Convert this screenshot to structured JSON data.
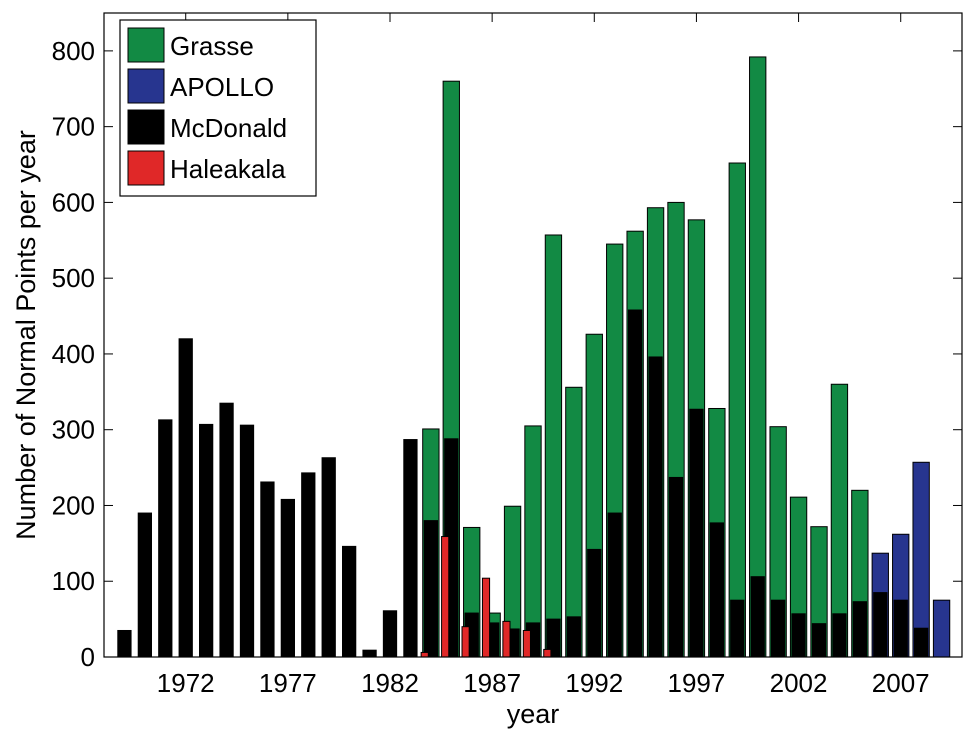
{
  "chart_data": {
    "type": "bar",
    "title": "",
    "xlabel": "year",
    "ylabel": "Number of Normal Points per year",
    "xlim": [
      1968,
      2010
    ],
    "ylim": [
      0,
      850
    ],
    "x_ticks": [
      1972,
      1977,
      1982,
      1987,
      1992,
      1997,
      2002,
      2007
    ],
    "y_ticks": [
      0,
      100,
      200,
      300,
      400,
      500,
      600,
      700,
      800
    ],
    "grid": false,
    "legend_position": "top-left",
    "series": [
      {
        "name": "Grasse",
        "color": "#128a44",
        "bar_width": 0.8,
        "offset": 0,
        "points": [
          [
            1984,
            301
          ],
          [
            1985,
            760
          ],
          [
            1986,
            171
          ],
          [
            1987,
            58
          ],
          [
            1988,
            199
          ],
          [
            1989,
            305
          ],
          [
            1990,
            557
          ],
          [
            1991,
            356
          ],
          [
            1992,
            426
          ],
          [
            1993,
            545
          ],
          [
            1994,
            562
          ],
          [
            1995,
            593
          ],
          [
            1996,
            600
          ],
          [
            1997,
            577
          ],
          [
            1998,
            328
          ],
          [
            1999,
            652
          ],
          [
            2000,
            792
          ],
          [
            2001,
            304
          ],
          [
            2002,
            211
          ],
          [
            2003,
            172
          ],
          [
            2004,
            360
          ],
          [
            2005,
            220
          ]
        ]
      },
      {
        "name": "APOLLO",
        "color": "#27358f",
        "bar_width": 0.8,
        "offset": 0,
        "points": [
          [
            2006,
            137
          ],
          [
            2007,
            162
          ],
          [
            2008,
            257
          ],
          [
            2009,
            75
          ]
        ]
      },
      {
        "name": "McDonald",
        "color": "#000000",
        "bar_width": 0.65,
        "offset": 0,
        "points": [
          [
            1969,
            35
          ],
          [
            1970,
            190
          ],
          [
            1971,
            313
          ],
          [
            1972,
            420
          ],
          [
            1973,
            307
          ],
          [
            1974,
            335
          ],
          [
            1975,
            306
          ],
          [
            1976,
            231
          ],
          [
            1977,
            208
          ],
          [
            1978,
            243
          ],
          [
            1979,
            263
          ],
          [
            1980,
            146
          ],
          [
            1981,
            9
          ],
          [
            1982,
            61
          ],
          [
            1983,
            287
          ],
          [
            1984,
            180
          ],
          [
            1985,
            288
          ],
          [
            1986,
            58
          ],
          [
            1987,
            45
          ],
          [
            1988,
            37
          ],
          [
            1989,
            45
          ],
          [
            1990,
            50
          ],
          [
            1991,
            53
          ],
          [
            1992,
            142
          ],
          [
            1993,
            190
          ],
          [
            1994,
            458
          ],
          [
            1995,
            396
          ],
          [
            1996,
            237
          ],
          [
            1997,
            327
          ],
          [
            1998,
            177
          ],
          [
            1999,
            75
          ],
          [
            2000,
            106
          ],
          [
            2001,
            75
          ],
          [
            2002,
            57
          ],
          [
            2003,
            44
          ],
          [
            2004,
            57
          ],
          [
            2005,
            73
          ],
          [
            2006,
            85
          ],
          [
            2007,
            75
          ],
          [
            2008,
            38
          ]
        ]
      },
      {
        "name": "Haleakala",
        "color": "#e02828",
        "bar_width": 0.35,
        "offset": -0.3,
        "points": [
          [
            1984,
            6
          ],
          [
            1985,
            159
          ],
          [
            1986,
            40
          ],
          [
            1987,
            104
          ],
          [
            1988,
            47
          ],
          [
            1989,
            35
          ],
          [
            1990,
            10
          ]
        ]
      }
    ],
    "legend": [
      {
        "label": "Grasse",
        "color": "#128a44"
      },
      {
        "label": "APOLLO",
        "color": "#27358f"
      },
      {
        "label": "McDonald",
        "color": "#000000"
      },
      {
        "label": "Haleakala",
        "color": "#e02828"
      }
    ]
  }
}
